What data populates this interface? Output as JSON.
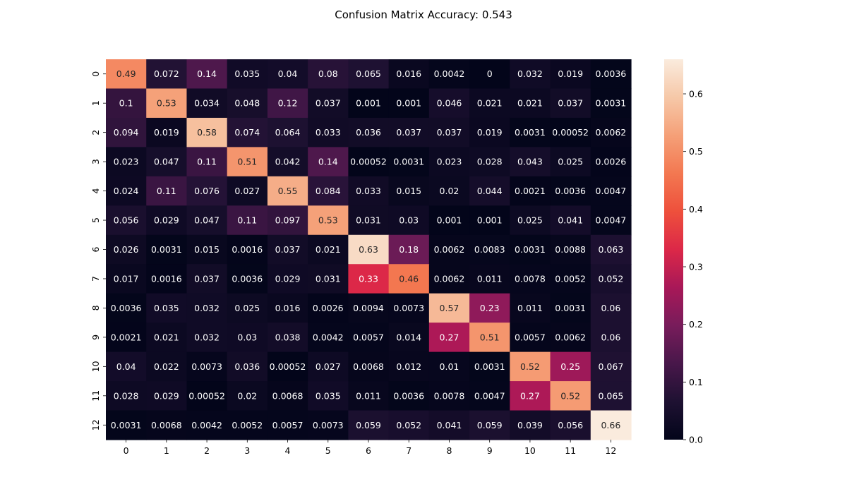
{
  "chart_data": {
    "type": "heatmap",
    "title": "Confusion Matrix Accuracy: 0.543",
    "x_categories": [
      "0",
      "1",
      "2",
      "3",
      "4",
      "5",
      "6",
      "7",
      "8",
      "9",
      "10",
      "11",
      "12"
    ],
    "y_categories": [
      "0",
      "1",
      "2",
      "3",
      "4",
      "5",
      "6",
      "7",
      "8",
      "9",
      "10",
      "11",
      "12"
    ],
    "values": [
      [
        "0.49",
        "0.072",
        "0.14",
        "0.035",
        "0.04",
        "0.08",
        "0.065",
        "0.016",
        "0.0042",
        "0",
        "0.032",
        "0.019",
        "0.0036"
      ],
      [
        "0.1",
        "0.53",
        "0.034",
        "0.048",
        "0.12",
        "0.037",
        "0.001",
        "0.001",
        "0.046",
        "0.021",
        "0.021",
        "0.037",
        "0.0031"
      ],
      [
        "0.094",
        "0.019",
        "0.58",
        "0.074",
        "0.064",
        "0.033",
        "0.036",
        "0.037",
        "0.037",
        "0.019",
        "0.0031",
        "0.00052",
        "0.0062"
      ],
      [
        "0.023",
        "0.047",
        "0.11",
        "0.51",
        "0.042",
        "0.14",
        "0.00052",
        "0.0031",
        "0.023",
        "0.028",
        "0.043",
        "0.025",
        "0.0026"
      ],
      [
        "0.024",
        "0.11",
        "0.076",
        "0.027",
        "0.55",
        "0.084",
        "0.033",
        "0.015",
        "0.02",
        "0.044",
        "0.0021",
        "0.0036",
        "0.0047"
      ],
      [
        "0.056",
        "0.029",
        "0.047",
        "0.11",
        "0.097",
        "0.53",
        "0.031",
        "0.03",
        "0.001",
        "0.001",
        "0.025",
        "0.041",
        "0.0047"
      ],
      [
        "0.026",
        "0.0031",
        "0.015",
        "0.0016",
        "0.037",
        "0.021",
        "0.63",
        "0.18",
        "0.0062",
        "0.0083",
        "0.0031",
        "0.0088",
        "0.063"
      ],
      [
        "0.017",
        "0.0016",
        "0.037",
        "0.0036",
        "0.029",
        "0.031",
        "0.33",
        "0.46",
        "0.0062",
        "0.011",
        "0.0078",
        "0.0052",
        "0.052"
      ],
      [
        "0.0036",
        "0.035",
        "0.032",
        "0.025",
        "0.016",
        "0.0026",
        "0.0094",
        "0.0073",
        "0.57",
        "0.23",
        "0.011",
        "0.0031",
        "0.06"
      ],
      [
        "0.0021",
        "0.021",
        "0.032",
        "0.03",
        "0.038",
        "0.0042",
        "0.0057",
        "0.014",
        "0.27",
        "0.51",
        "0.0057",
        "0.0062",
        "0.06"
      ],
      [
        "0.04",
        "0.022",
        "0.0073",
        "0.036",
        "0.00052",
        "0.027",
        "0.0068",
        "0.012",
        "0.01",
        "0.0031",
        "0.52",
        "0.25",
        "0.067"
      ],
      [
        "0.028",
        "0.029",
        "0.00052",
        "0.02",
        "0.0068",
        "0.035",
        "0.011",
        "0.0036",
        "0.0078",
        "0.0047",
        "0.27",
        "0.52",
        "0.065"
      ],
      [
        "0.0031",
        "0.0068",
        "0.0042",
        "0.0052",
        "0.0057",
        "0.0073",
        "0.059",
        "0.052",
        "0.041",
        "0.059",
        "0.039",
        "0.056",
        "0.66"
      ]
    ],
    "colorbar": {
      "range": [
        0,
        0.66
      ],
      "ticks": [
        "0.0",
        "0.1",
        "0.2",
        "0.3",
        "0.4",
        "0.5",
        "0.6"
      ],
      "colormap": "rocket"
    },
    "grid": false,
    "legend": "right"
  }
}
